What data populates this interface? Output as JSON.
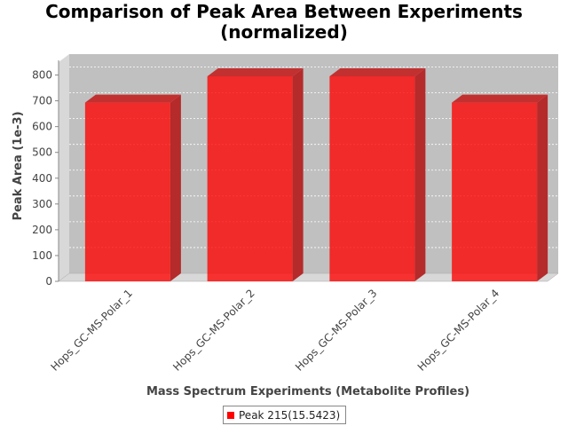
{
  "chart_data": {
    "type": "bar",
    "title_lines": [
      "Comparison of Peak Area Between Experiments",
      "(normalized)"
    ],
    "xlabel": "Mass Spectrum Experiments (Metabolite Profiles)",
    "ylabel": "Peak Area (1e-3)",
    "categories": [
      "Hops_GC-MS-Polar_1",
      "Hops_GC-MS-Polar_2",
      "Hops_GC-MS-Polar_3",
      "Hops_GC-MS-Polar_4"
    ],
    "series": [
      {
        "name": "Peak 215(15.5423)",
        "values": [
          693,
          795,
          795,
          693
        ],
        "color": "#ff0000"
      }
    ],
    "ylim": [
      0,
      850
    ],
    "yticks": [
      0,
      100,
      200,
      300,
      400,
      500,
      600,
      700,
      800
    ],
    "grid": true,
    "legend_position": "bottom",
    "style": "3d-bar"
  }
}
